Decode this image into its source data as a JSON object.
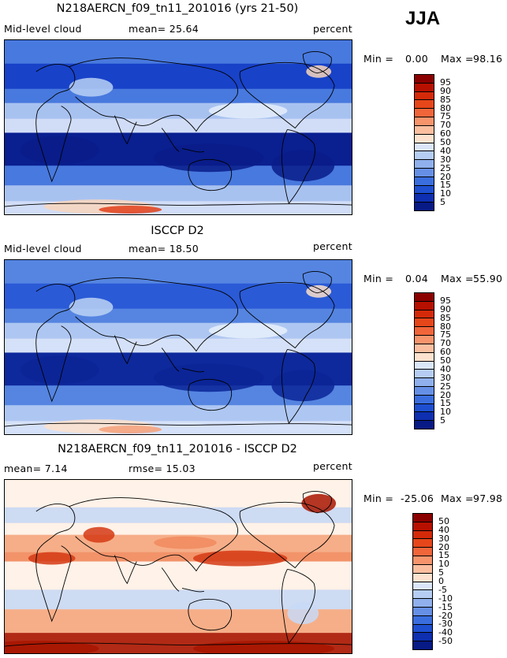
{
  "season": "JJA",
  "panels": [
    {
      "title": "N218AERCN_f09_tn11_201016 (yrs 21-50)",
      "left_label": "Mid-level cloud",
      "center_label": "mean=  25.64",
      "right_label": "percent",
      "min_label": "Min =",
      "min_value": "0.00",
      "max_label": "Max =",
      "max_value": "98.16",
      "scale": "abs",
      "colorbar_levels": [
        "95",
        "90",
        "85",
        "80",
        "75",
        "70",
        "60",
        "50",
        "40",
        "30",
        "25",
        "20",
        "15",
        "10",
        "5"
      ],
      "colorbar_colors": [
        "#8b0000",
        "#b71000",
        "#d42a0a",
        "#e6461a",
        "#f1653a",
        "#f7946c",
        "#fbbfa0",
        "#fde3cf",
        "#dbe6f8",
        "#b5cdf2",
        "#8fb0ec",
        "#6690e6",
        "#3a6ede",
        "#1d4fd0",
        "#0d2fb0",
        "#071a85"
      ],
      "map_palette": {
        "base": "#1843c8",
        "deep": "#091c8a",
        "mid": "#4e80e0",
        "light": "#b8d0f4",
        "pale": "#e5eefc",
        "warm": "#f9d6bd",
        "hot": "#e0401a"
      }
    },
    {
      "title": "ISCCP D2",
      "left_label": "Mid-level cloud",
      "center_label": "mean=  18.50",
      "right_label": "percent",
      "min_label": "Min =",
      "min_value": "0.04",
      "max_label": "Max =",
      "max_value": "55.90",
      "scale": "abs",
      "colorbar_levels": [
        "95",
        "90",
        "85",
        "80",
        "75",
        "70",
        "60",
        "50",
        "40",
        "30",
        "25",
        "20",
        "15",
        "10",
        "5"
      ],
      "colorbar_colors": [
        "#8b0000",
        "#b71000",
        "#d42a0a",
        "#e6461a",
        "#f1653a",
        "#f7946c",
        "#fbbfa0",
        "#fde3cf",
        "#dbe6f8",
        "#b5cdf2",
        "#8fb0ec",
        "#6690e6",
        "#3a6ede",
        "#1d4fd0",
        "#0d2fb0",
        "#071a85"
      ],
      "map_palette": {
        "base": "#2a5ad6",
        "deep": "#0b2496",
        "mid": "#5a8ae2",
        "light": "#bcd3f5",
        "pale": "#e8f0fc",
        "warm": "#fbe0cc",
        "hot": "#f4a07a"
      }
    },
    {
      "title": "N218AERCN_f09_tn11_201016 - ISCCP D2",
      "left_label": "mean=   7.14",
      "center_label": "rmse=  15.03",
      "right_label": "percent",
      "min_label": "Min =",
      "min_value": "-25.06",
      "max_label": "Max =",
      "max_value": "97.98",
      "scale": "diff",
      "colorbar_levels": [
        "50",
        "40",
        "30",
        "20",
        "15",
        "10",
        "5",
        "0",
        "-5",
        "-10",
        "-15",
        "-20",
        "-30",
        "-40",
        "-50"
      ],
      "colorbar_colors": [
        "#8b0000",
        "#b71000",
        "#d42a0a",
        "#e6461a",
        "#f1653a",
        "#f7946c",
        "#fbbfa0",
        "#fde3cf",
        "#dbe6f8",
        "#b5cdf2",
        "#8fb0ec",
        "#6690e6",
        "#3a6ede",
        "#1d4fd0",
        "#0d2fb0",
        "#071a85"
      ],
      "map_palette": {
        "base": "#fbe3d0",
        "deep": "#d53a14",
        "mid": "#f18a5e",
        "light": "#c8d9f6",
        "pale": "#fff3ea",
        "warm": "#f5a780",
        "hot": "#a81500"
      }
    }
  ],
  "chart_data": [
    {
      "type": "heatmap",
      "title": "N218AERCN_f09_tn11_201016 (yrs 21-50)",
      "variable": "Mid-level cloud",
      "units": "percent",
      "season": "JJA",
      "mean": 25.64,
      "min": 0.0,
      "max": 98.16,
      "contour_levels": [
        5,
        10,
        15,
        20,
        25,
        30,
        40,
        50,
        60,
        70,
        75,
        80,
        85,
        90,
        95
      ]
    },
    {
      "type": "heatmap",
      "title": "ISCCP D2",
      "variable": "Mid-level cloud",
      "units": "percent",
      "season": "JJA",
      "mean": 18.5,
      "min": 0.04,
      "max": 55.9,
      "contour_levels": [
        5,
        10,
        15,
        20,
        25,
        30,
        40,
        50,
        60,
        70,
        75,
        80,
        85,
        90,
        95
      ]
    },
    {
      "type": "heatmap",
      "title": "N218AERCN_f09_tn11_201016 - ISCCP D2",
      "units": "percent",
      "season": "JJA",
      "mean": 7.14,
      "rmse": 15.03,
      "min": -25.06,
      "max": 97.98,
      "contour_levels": [
        -50,
        -40,
        -30,
        -20,
        -15,
        -10,
        -5,
        0,
        5,
        10,
        15,
        20,
        30,
        40,
        50
      ]
    }
  ]
}
